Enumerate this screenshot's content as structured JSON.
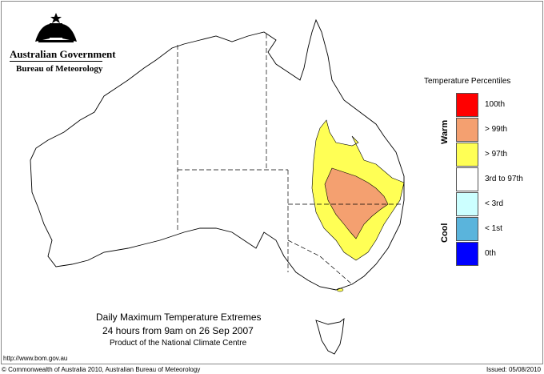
{
  "logo": {
    "title": "Australian Government",
    "subtitle": "Bureau of Meteorology"
  },
  "map": {
    "title": "Daily Maximum Temperature Extremes",
    "subtitle": "24 hours from 9am on 26 Sep 2007",
    "product": "Product of the National Climate Centre"
  },
  "footer": {
    "url": "http://www.bom.gov.au",
    "copyright": "© Commonwealth of Australia 2010, Australian Bureau of Meteorology",
    "issued": "Issued: 05/08/2010"
  },
  "legend": {
    "title": "Temperature Percentiles",
    "warm": "Warm",
    "cool": "Cool",
    "items": [
      {
        "label": "100th",
        "color": "#ff0000"
      },
      {
        "label": "> 99th",
        "color": "#f4a070"
      },
      {
        "label": "> 97th",
        "color": "#ffff55"
      },
      {
        "label": "3rd to 97th",
        "color": "#ffffff"
      },
      {
        "label": "< 3rd",
        "color": "#ccffff"
      },
      {
        "label": "< 1st",
        "color": "#5ab4dc"
      },
      {
        "label": "0th",
        "color": "#0000ff"
      }
    ]
  }
}
